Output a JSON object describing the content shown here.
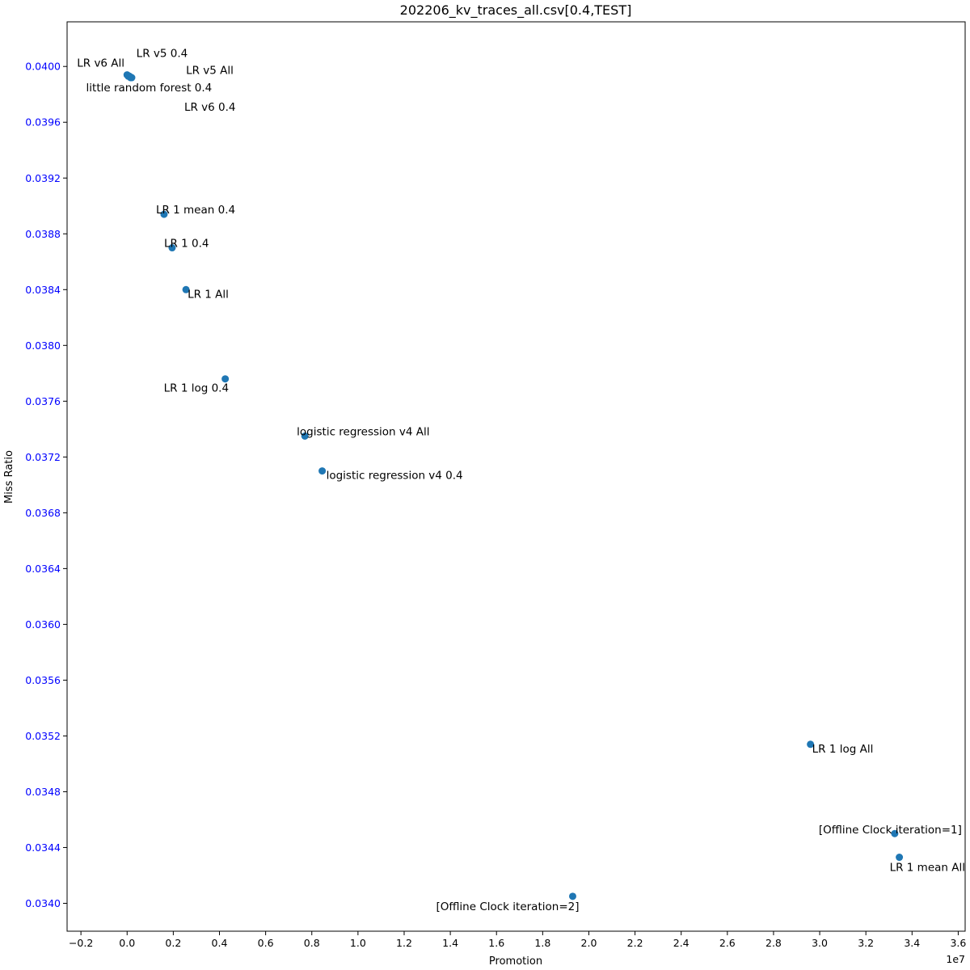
{
  "chart_data": {
    "type": "scatter",
    "title": "202206_kv_traces_all.csv[0.4,TEST]",
    "xlabel": "Promotion",
    "ylabel": "Miss Ratio",
    "x_offset_text": "1e7",
    "x_scale": 10000000,
    "xlim": [
      -0.26,
      3.63
    ],
    "ylim": [
      0.0338,
      0.04032
    ],
    "xticks": [
      -0.2,
      0.0,
      0.2,
      0.4,
      0.6,
      0.8,
      1.0,
      1.2,
      1.4,
      1.6,
      1.8,
      2.0,
      2.2,
      2.4,
      2.6,
      2.8,
      3.0,
      3.2,
      3.4,
      3.6
    ],
    "xtick_labels": [
      "−0.2",
      "0.0",
      "0.2",
      "0.4",
      "0.6",
      "0.8",
      "1.0",
      "1.2",
      "1.4",
      "1.6",
      "1.8",
      "2.0",
      "2.2",
      "2.4",
      "2.6",
      "2.8",
      "3.0",
      "3.2",
      "3.4",
      "3.6"
    ],
    "yticks": [
      0.034,
      0.0344,
      0.0348,
      0.0352,
      0.0356,
      0.036,
      0.0364,
      0.0368,
      0.0372,
      0.0376,
      0.038,
      0.0384,
      0.0388,
      0.0392,
      0.0396,
      0.04
    ],
    "ytick_labels": [
      "0.0340",
      "0.0344",
      "0.0348",
      "0.0352",
      "0.0356",
      "0.0360",
      "0.0364",
      "0.0368",
      "0.0372",
      "0.0376",
      "0.0380",
      "0.0384",
      "0.0388",
      "0.0392",
      "0.0396",
      "0.0400"
    ],
    "ytick_color": "#0000ff",
    "marker_color": "#1f77b4",
    "grid": false,
    "points": [
      {
        "label": "LR v6 All",
        "x": 0.0,
        "y": 0.03994
      },
      {
        "label": "LR v5 0.4",
        "x": 0.005,
        "y": 0.03993
      },
      {
        "label": "LR v5 All",
        "x": 0.01,
        "y": 0.03993
      },
      {
        "label": "little random forest 0.4",
        "x": 0.015,
        "y": 0.03992
      },
      {
        "label": "LR v6 0.4",
        "x": 0.02,
        "y": 0.03992
      },
      {
        "label": "LR 1 mean 0.4",
        "x": 0.16,
        "y": 0.03894
      },
      {
        "label": "LR 1 0.4",
        "x": 0.195,
        "y": 0.0387
      },
      {
        "label": "LR 1 All",
        "x": 0.255,
        "y": 0.0384
      },
      {
        "label": "LR 1 log 0.4",
        "x": 0.425,
        "y": 0.03776
      },
      {
        "label": "logistic regression v4 All",
        "x": 0.77,
        "y": 0.03735
      },
      {
        "label": "logistic regression v4 0.4",
        "x": 0.845,
        "y": 0.0371
      },
      {
        "label": "LR 1 log All",
        "x": 2.96,
        "y": 0.03514
      },
      {
        "label": "[Offline Clock iteration=1]",
        "x": 3.325,
        "y": 0.0345
      },
      {
        "label": "LR 1 mean All",
        "x": 3.345,
        "y": 0.03433
      },
      {
        "label": "[Offline Clock iteration=2]",
        "x": 1.93,
        "y": 0.03405
      }
    ]
  }
}
